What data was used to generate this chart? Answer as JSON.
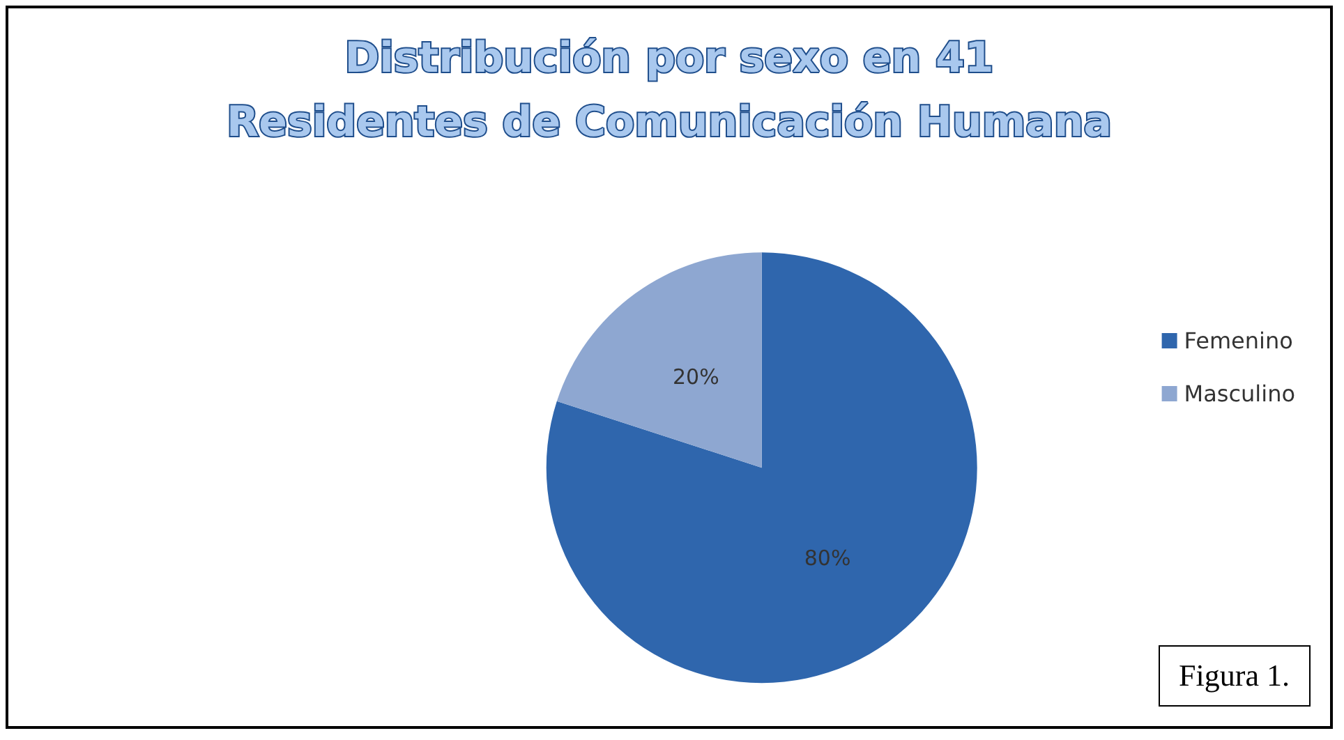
{
  "chart_data": {
    "type": "pie",
    "title": "Distribución por sexo en 41\nResidentes de Comunicación Humana",
    "categories": [
      "Femenino",
      "Masculino"
    ],
    "values": [
      80,
      20
    ],
    "colors": [
      "#2f66ad",
      "#8ea7d1"
    ],
    "value_labels": [
      "80%",
      "20%"
    ],
    "legend": "right",
    "annotations": [
      "Figura 1."
    ]
  }
}
